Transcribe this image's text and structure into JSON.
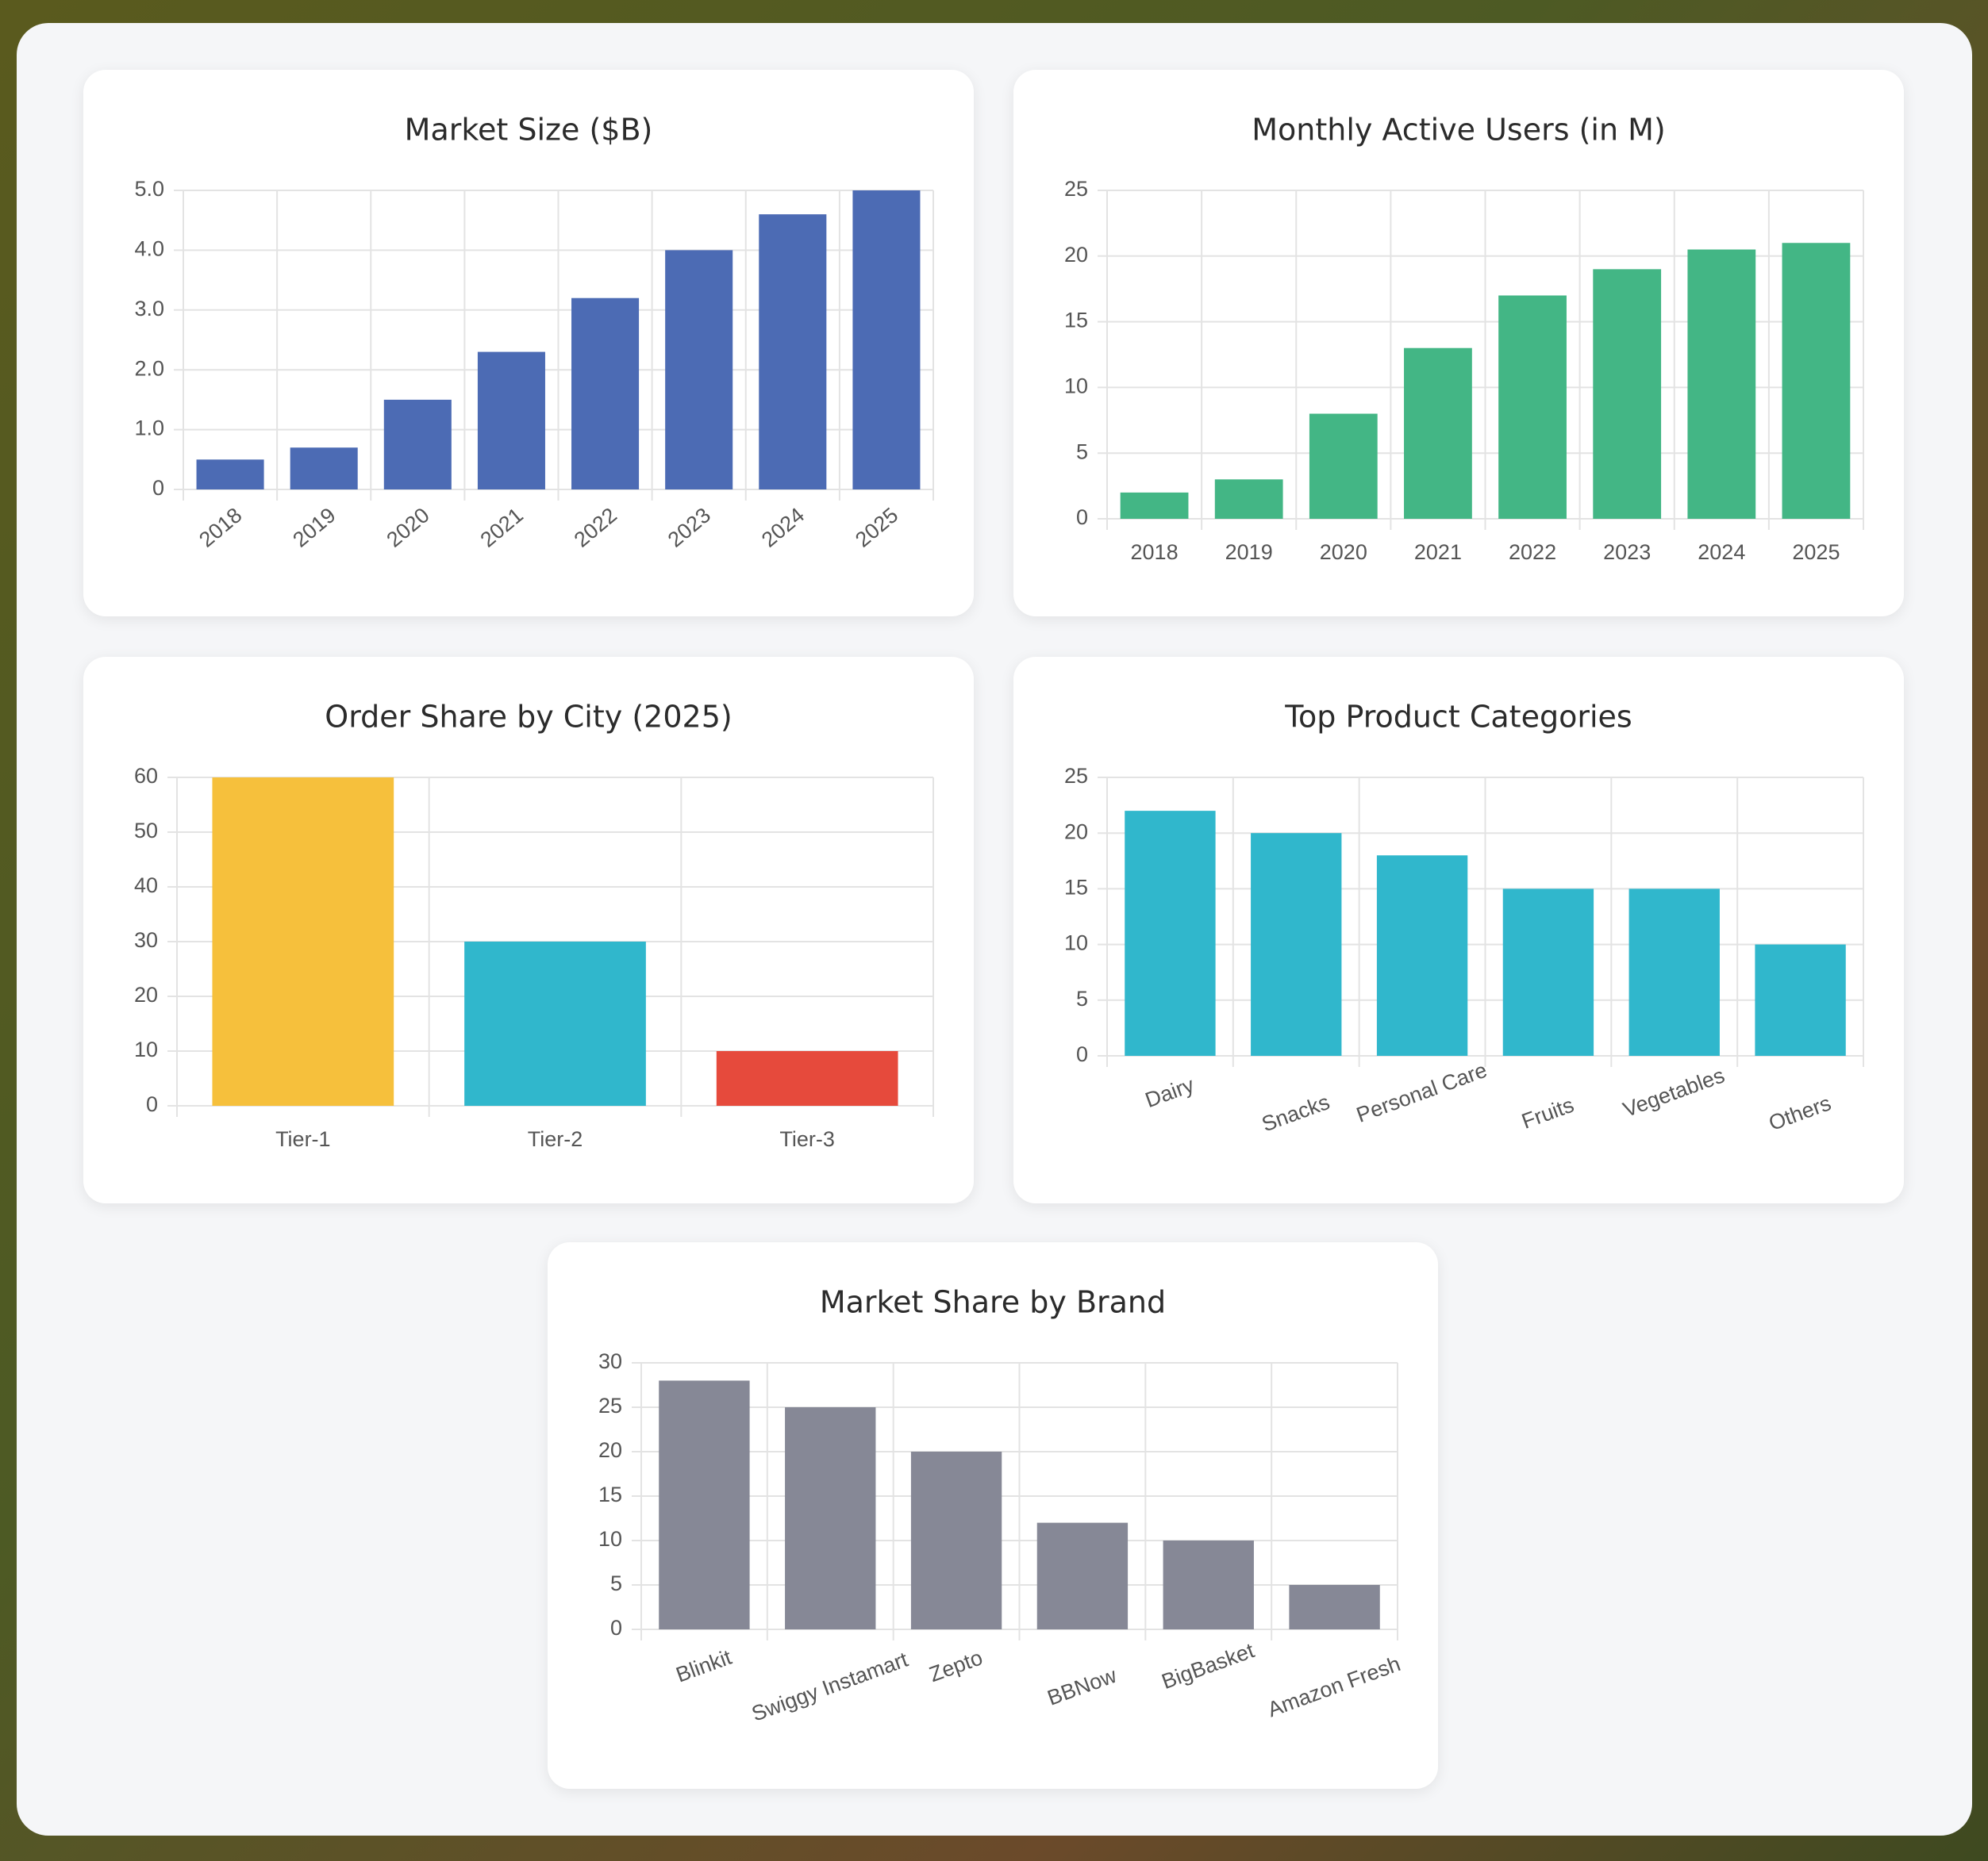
{
  "chart_data": [
    {
      "type": "bar",
      "title": "Market Size ($B)",
      "categories": [
        "2018",
        "2019",
        "2020",
        "2021",
        "2022",
        "2023",
        "2024",
        "2025"
      ],
      "values": [
        0.5,
        0.7,
        1.5,
        2.3,
        3.2,
        4.0,
        4.6,
        5.0
      ],
      "color": "#4c6bb4",
      "ylim": [
        0,
        5
      ],
      "yticks": [
        0,
        {
          "value": 1,
          "label": "1.0"
        },
        {
          "value": 2,
          "label": "2.0"
        },
        {
          "value": 3,
          "label": "3.0"
        },
        {
          "value": 4,
          "label": "4.0"
        },
        {
          "value": 5,
          "label": "5.0"
        }
      ],
      "grid": true
    },
    {
      "type": "bar",
      "title": "Monthly Active Users (in M)",
      "categories": [
        "2018",
        "2019",
        "2020",
        "2021",
        "2022",
        "2023",
        "2024",
        "2025"
      ],
      "values": [
        2,
        3,
        8,
        13,
        17,
        19,
        20.5,
        21
      ],
      "color": "#43b685",
      "ylim": [
        0,
        25
      ],
      "yticks": [
        0,
        5,
        10,
        15,
        20,
        25
      ],
      "grid": true
    },
    {
      "type": "bar",
      "title": "Order Share by City (2025)",
      "categories": [
        "Tier-1",
        "Tier-2",
        "Tier-3"
      ],
      "values": [
        60,
        30,
        10
      ],
      "colors": [
        "#f6c03c",
        "#30b7cc",
        "#e64a3c"
      ],
      "ylim": [
        0,
        60
      ],
      "yticks": [
        0,
        10,
        20,
        30,
        40,
        50,
        60
      ],
      "grid": true
    },
    {
      "type": "bar",
      "title": "Top Product Categories",
      "categories": [
        "Dairy",
        "Snacks",
        "Personal Care",
        "Fruits",
        "Vegetables",
        "Others"
      ],
      "values": [
        22,
        20,
        18,
        15,
        15,
        10
      ],
      "color": "#30b7cc",
      "ylim": [
        0,
        25
      ],
      "yticks": [
        0,
        5,
        10,
        15,
        20,
        25
      ],
      "grid": true
    },
    {
      "type": "bar",
      "title": "Market Share by Brand",
      "categories": [
        "Blinkit",
        "Swiggy Instamart",
        "Zepto",
        "BBNow",
        "BigBasket",
        "Amazon Fresh"
      ],
      "values": [
        28,
        25,
        20,
        12,
        10,
        5
      ],
      "color": "#868896",
      "ylim": [
        0,
        30
      ],
      "yticks": [
        0,
        5,
        10,
        15,
        20,
        25,
        30
      ],
      "grid": true
    }
  ]
}
